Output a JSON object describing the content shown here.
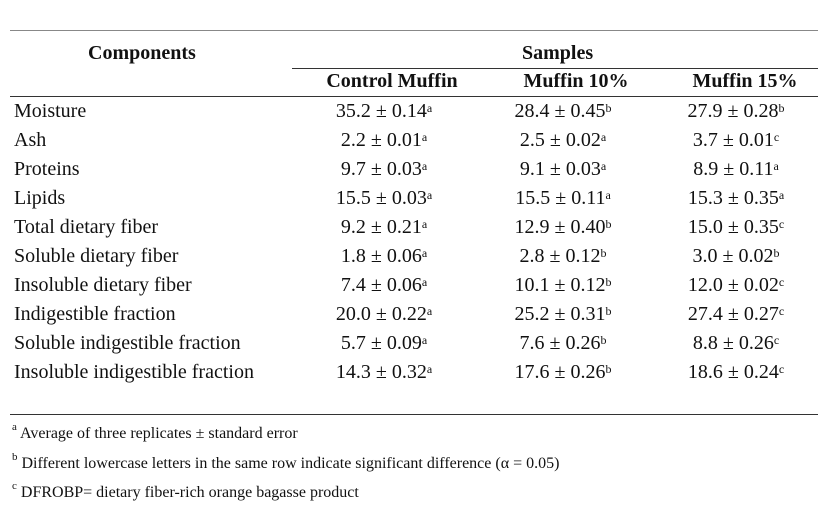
{
  "header": {
    "components": "Components",
    "samples": "Samples",
    "columns": [
      "Control Muffin",
      "Muffin 10%",
      "Muffin 15%"
    ]
  },
  "rows": [
    {
      "label": "Moisture",
      "values": [
        "35.2 ± 0.14",
        "28.4 ± 0.45",
        "27.9 ± 0.28"
      ],
      "sups": [
        "a",
        "b",
        "b"
      ]
    },
    {
      "label": "Ash",
      "values": [
        "2.2 ± 0.01",
        "2.5 ± 0.02",
        "3.7 ± 0.01"
      ],
      "sups": [
        "a",
        "a",
        "c"
      ]
    },
    {
      "label": "Proteins",
      "values": [
        "9.7 ± 0.03",
        "9.1 ± 0.03",
        "8.9 ± 0.11"
      ],
      "sups": [
        "a",
        "a",
        "a"
      ]
    },
    {
      "label": "Lipids",
      "values": [
        "15.5 ± 0.03",
        "15.5 ± 0.11",
        "15.3 ± 0.35"
      ],
      "sups": [
        "a",
        "a",
        "a"
      ]
    },
    {
      "label": "Total dietary fiber",
      "values": [
        "9.2 ± 0.21",
        "12.9 ± 0.40",
        "15.0 ± 0.35"
      ],
      "sups": [
        "a",
        "b",
        "c"
      ]
    },
    {
      "label": "Soluble dietary fiber",
      "values": [
        "1.8 ± 0.06",
        "2.8 ± 0.12",
        "3.0 ± 0.02"
      ],
      "sups": [
        "a",
        "b",
        "b"
      ]
    },
    {
      "label": "Insoluble dietary fiber",
      "values": [
        "7.4 ± 0.06",
        "10.1 ± 0.12",
        "12.0 ± 0.02"
      ],
      "sups": [
        "a",
        "b",
        "c"
      ]
    },
    {
      "label": "Indigestible fraction",
      "values": [
        "20.0 ± 0.22",
        "25.2 ± 0.31",
        "27.4 ± 0.27"
      ],
      "sups": [
        "a",
        "b",
        "c"
      ]
    },
    {
      "label": "Soluble indigestible fraction",
      "values": [
        "5.7 ± 0.09",
        "7.6 ± 0.26",
        "8.8 ± 0.26"
      ],
      "sups": [
        "a",
        "b",
        "c"
      ]
    },
    {
      "label": "Insoluble indigestible fraction",
      "values": [
        "14.3 ± 0.32",
        "17.6 ± 0.26",
        "18.6 ± 0.24"
      ],
      "sups": [
        "a",
        "b",
        "c"
      ]
    }
  ],
  "footnotes": [
    {
      "mark": "a",
      "text": "Average of three replicates ± standard error"
    },
    {
      "mark": "b",
      "text": "Different lowercase letters in the same row indicate significant difference (α = 0.05)"
    },
    {
      "mark": "c",
      "text": "DFROBP= dietary fiber-rich orange bagasse product"
    }
  ]
}
